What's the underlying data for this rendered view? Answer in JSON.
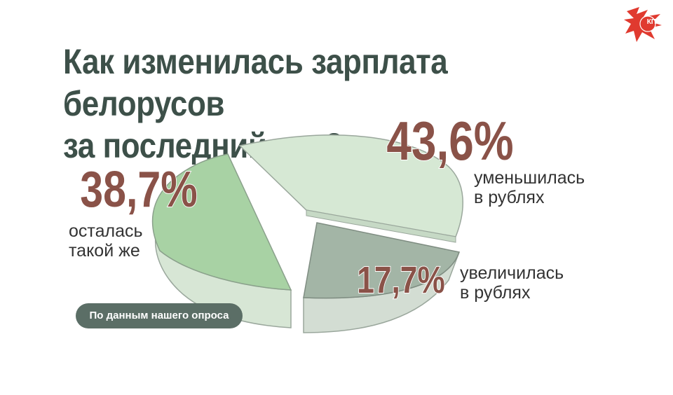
{
  "chart_data": {
    "type": "pie",
    "title": "Как изменилась зарплата белорусов за последний год?",
    "slices": [
      {
        "value_label": "43,6%",
        "value": 43.6,
        "label_lines": [
          "уменьшилась",
          "в рублях"
        ],
        "color": "#d6e8d4"
      },
      {
        "value_label": "17,7%",
        "value": 17.7,
        "label_lines": [
          "увеличилась",
          "в рублях"
        ],
        "color": "#a3b5a6"
      },
      {
        "value_label": "38,7%",
        "value": 38.7,
        "label_lines": [
          "осталась",
          "такой же"
        ],
        "color": "#a8d2a4"
      }
    ]
  },
  "source_note": "По данным нашего опроса",
  "logo": {
    "text": "КП",
    "color": "#e03a2f"
  },
  "colors": {
    "title": "#3d5049",
    "percent": "#8a5248",
    "badge": "#5b6e66"
  }
}
